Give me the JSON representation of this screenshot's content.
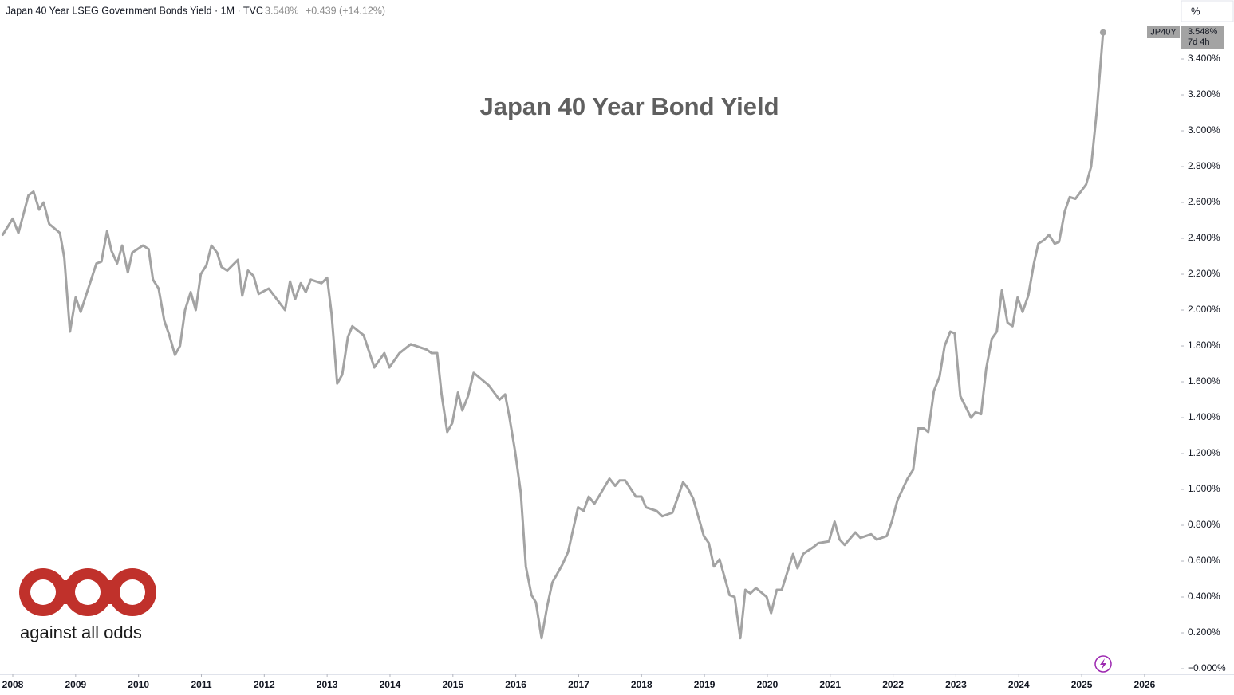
{
  "header": {
    "symbol": "Japan 40 Year LSEG Government Bonds Yield · 1M · TVC",
    "price": "3.548%",
    "change": "+0.439 (+14.12%)",
    "unit": "%",
    "countdown": "7d 4h"
  },
  "logo": {
    "text": "against all odds"
  },
  "chart_data": {
    "type": "line",
    "title": "Japan 40 Year Bond Yield",
    "x": [
      2007.84,
      2008.0,
      2008.09,
      2008.25,
      2008.33,
      2008.42,
      2008.49,
      2008.58,
      2008.75,
      2008.82,
      2008.91,
      2009.0,
      2009.08,
      2009.33,
      2009.41,
      2009.5,
      2009.57,
      2009.66,
      2009.74,
      2009.83,
      2009.9,
      2010.07,
      2010.16,
      2010.23,
      2010.32,
      2010.41,
      2010.49,
      2010.58,
      2010.66,
      2010.74,
      2010.83,
      2010.91,
      2010.99,
      2011.08,
      2011.16,
      2011.25,
      2011.32,
      2011.41,
      2011.58,
      2011.65,
      2011.74,
      2011.83,
      2011.91,
      2012.07,
      2012.33,
      2012.41,
      2012.49,
      2012.58,
      2012.66,
      2012.74,
      2012.91,
      2013.0,
      2013.07,
      2013.16,
      2013.24,
      2013.33,
      2013.4,
      2013.58,
      2013.75,
      2013.91,
      2013.99,
      2014.15,
      2014.33,
      2014.58,
      2014.66,
      2014.75,
      2014.82,
      2014.91,
      2014.99,
      2015.08,
      2015.15,
      2015.24,
      2015.33,
      2015.57,
      2015.74,
      2015.83,
      2015.9,
      2015.99,
      2016.08,
      2016.16,
      2016.25,
      2016.32,
      2016.41,
      2016.5,
      2016.58,
      2016.74,
      2016.83,
      2016.92,
      2016.99,
      2017.08,
      2017.16,
      2017.25,
      2017.32,
      2017.49,
      2017.58,
      2017.65,
      2017.74,
      2017.91,
      2018.0,
      2018.07,
      2018.24,
      2018.33,
      2018.49,
      2018.66,
      2018.73,
      2018.82,
      2018.99,
      2019.07,
      2019.15,
      2019.24,
      2019.4,
      2019.48,
      2019.57,
      2019.65,
      2019.73,
      2019.82,
      2019.99,
      2020.06,
      2020.15,
      2020.23,
      2020.41,
      2020.48,
      2020.57,
      2020.74,
      2020.81,
      2020.98,
      2021.07,
      2021.15,
      2021.23,
      2021.4,
      2021.48,
      2021.65,
      2021.74,
      2021.9,
      2021.98,
      2022.07,
      2022.23,
      2022.32,
      2022.4,
      2022.49,
      2022.56,
      2022.65,
      2022.74,
      2022.82,
      2022.91,
      2022.98,
      2023.07,
      2023.24,
      2023.31,
      2023.4,
      2023.48,
      2023.57,
      2023.65,
      2023.73,
      2023.82,
      2023.9,
      2023.98,
      2024.06,
      2024.15,
      2024.24,
      2024.31,
      2024.4,
      2024.48,
      2024.57,
      2024.64,
      2024.73,
      2024.81,
      2024.9,
      2025.07,
      2025.15,
      2025.24,
      2025.34
    ],
    "series": [
      {
        "name": "JP40Y",
        "color": "#a3a3a3",
        "values": [
          2.42,
          2.51,
          2.43,
          2.64,
          2.66,
          2.56,
          2.6,
          2.48,
          2.43,
          2.29,
          1.88,
          2.07,
          1.99,
          2.26,
          2.27,
          2.44,
          2.33,
          2.26,
          2.36,
          2.21,
          2.32,
          2.36,
          2.34,
          2.17,
          2.12,
          1.94,
          1.86,
          1.75,
          1.8,
          2.0,
          2.1,
          2.0,
          2.2,
          2.25,
          2.36,
          2.32,
          2.24,
          2.22,
          2.28,
          2.08,
          2.22,
          2.19,
          2.09,
          2.12,
          2.0,
          2.16,
          2.06,
          2.15,
          2.1,
          2.17,
          2.15,
          2.18,
          1.98,
          1.59,
          1.64,
          1.85,
          1.91,
          1.86,
          1.68,
          1.76,
          1.68,
          1.76,
          1.81,
          1.78,
          1.76,
          1.76,
          1.53,
          1.32,
          1.37,
          1.54,
          1.44,
          1.52,
          1.65,
          1.58,
          1.5,
          1.53,
          1.4,
          1.21,
          0.98,
          0.57,
          0.41,
          0.37,
          0.17,
          0.35,
          0.48,
          0.58,
          0.65,
          0.79,
          0.9,
          0.88,
          0.96,
          0.92,
          0.96,
          1.06,
          1.02,
          1.05,
          1.05,
          0.96,
          0.96,
          0.9,
          0.88,
          0.85,
          0.87,
          1.04,
          1.01,
          0.95,
          0.74,
          0.7,
          0.57,
          0.61,
          0.41,
          0.4,
          0.17,
          0.44,
          0.42,
          0.45,
          0.4,
          0.31,
          0.44,
          0.44,
          0.64,
          0.56,
          0.64,
          0.68,
          0.7,
          0.71,
          0.82,
          0.72,
          0.69,
          0.76,
          0.73,
          0.75,
          0.72,
          0.74,
          0.82,
          0.94,
          1.06,
          1.11,
          1.34,
          1.34,
          1.32,
          1.55,
          1.63,
          1.8,
          1.88,
          1.87,
          1.52,
          1.4,
          1.43,
          1.42,
          1.67,
          1.84,
          1.88,
          2.11,
          1.93,
          1.91,
          2.07,
          1.99,
          2.08,
          2.26,
          2.37,
          2.39,
          2.42,
          2.37,
          2.38,
          2.55,
          2.63,
          2.62,
          2.7,
          2.8,
          3.11,
          3.548
        ]
      }
    ],
    "xlim": [
      2007.797,
      2026.572
    ],
    "xticks": [
      2008,
      2009,
      2010,
      2011,
      2012,
      2013,
      2014,
      2015,
      2016,
      2017,
      2018,
      2019,
      2020,
      2021,
      2022,
      2023,
      2024,
      2025,
      2026
    ],
    "ylim": [
      -0.031,
      3.729
    ],
    "yticks": [
      {
        "value": 0,
        "label": "−0.000%"
      },
      {
        "value": 0.2,
        "label": "0.200%"
      },
      {
        "value": 0.4,
        "label": "0.400%"
      },
      {
        "value": 0.6,
        "label": "0.600%"
      },
      {
        "value": 0.8,
        "label": "0.800%"
      },
      {
        "value": 1.0,
        "label": "1.000%"
      },
      {
        "value": 1.2,
        "label": "1.200%"
      },
      {
        "value": 1.4,
        "label": "1.400%"
      },
      {
        "value": 1.6,
        "label": "1.600%"
      },
      {
        "value": 1.8,
        "label": "1.800%"
      },
      {
        "value": 2.0,
        "label": "2.000%"
      },
      {
        "value": 2.2,
        "label": "2.200%"
      },
      {
        "value": 2.4,
        "label": "2.400%"
      },
      {
        "value": 2.6,
        "label": "2.600%"
      },
      {
        "value": 2.8,
        "label": "2.800%"
      },
      {
        "value": 3.0,
        "label": "3.000%"
      },
      {
        "value": 3.2,
        "label": "3.200%"
      },
      {
        "value": 3.4,
        "label": "3.400%"
      }
    ],
    "grid": false
  }
}
